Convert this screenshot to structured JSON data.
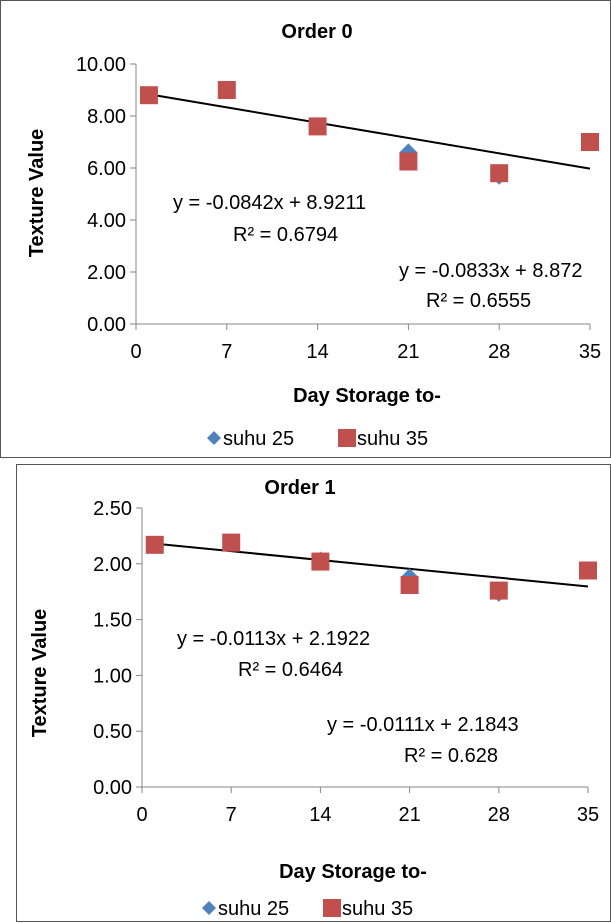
{
  "colors": {
    "suhu25": "#4F81BD",
    "suhu35": "#C0504D",
    "trendline": "#000000"
  },
  "chart_data": [
    {
      "type": "scatter",
      "title": "Order 0",
      "xlabel": "Day Storage to-",
      "ylabel": "Texture Value",
      "x_ticks": [
        "0",
        "7",
        "14",
        "21",
        "28",
        "35"
      ],
      "y_ticks": [
        "0.00",
        "2.00",
        "4.00",
        "6.00",
        "8.00",
        "10.00"
      ],
      "xlim": [
        0,
        35
      ],
      "ylim": [
        0,
        10
      ],
      "grid": false,
      "legend": "bottom",
      "series": [
        {
          "name": "suhu 25",
          "marker": "diamond",
          "x": [
            1,
            7,
            14,
            21,
            28,
            35
          ],
          "y": [
            8.8,
            9.0,
            7.6,
            6.6,
            5.7,
            7.0
          ]
        },
        {
          "name": "suhu 35",
          "marker": "square",
          "x": [
            1,
            7,
            14,
            21,
            28,
            35
          ],
          "y": [
            8.8,
            9.0,
            7.6,
            6.25,
            5.8,
            7.0
          ]
        }
      ],
      "trendline": {
        "slope": -0.0842,
        "intercept": 8.9211,
        "x_range": [
          1,
          35
        ]
      },
      "annotations": [
        {
          "line1": "y = -0.0842x + 8.9211",
          "line2": "R² = 0.6794"
        },
        {
          "line1": "y = -0.0833x + 8.872",
          "line2": "R² = 0.6555"
        }
      ]
    },
    {
      "type": "scatter",
      "title": "Order 1",
      "xlabel": "Day Storage to-",
      "ylabel": "Texture Value",
      "x_ticks": [
        "0",
        "7",
        "14",
        "21",
        "28",
        "35"
      ],
      "y_ticks": [
        "0.00",
        "0.50",
        "1.00",
        "1.50",
        "2.00",
        "2.50"
      ],
      "xlim": [
        0,
        35
      ],
      "ylim": [
        0,
        2.5
      ],
      "grid": false,
      "legend": "bottom",
      "series": [
        {
          "name": "suhu 25",
          "marker": "diamond",
          "x": [
            1,
            7,
            14,
            21,
            28,
            35
          ],
          "y": [
            2.17,
            2.19,
            2.03,
            1.88,
            1.74,
            1.94
          ]
        },
        {
          "name": "suhu 35",
          "marker": "square",
          "x": [
            1,
            7,
            14,
            21,
            28,
            35
          ],
          "y": [
            2.17,
            2.19,
            2.02,
            1.81,
            1.76,
            1.94
          ]
        }
      ],
      "trendline": {
        "slope": -0.0113,
        "intercept": 2.1922,
        "x_range": [
          1,
          35
        ]
      },
      "annotations": [
        {
          "line1": "y = -0.0113x + 2.1922",
          "line2": "R² = 0.6464"
        },
        {
          "line1": "y = -0.0111x + 2.1843",
          "line2": "R² = 0.628"
        }
      ]
    }
  ]
}
